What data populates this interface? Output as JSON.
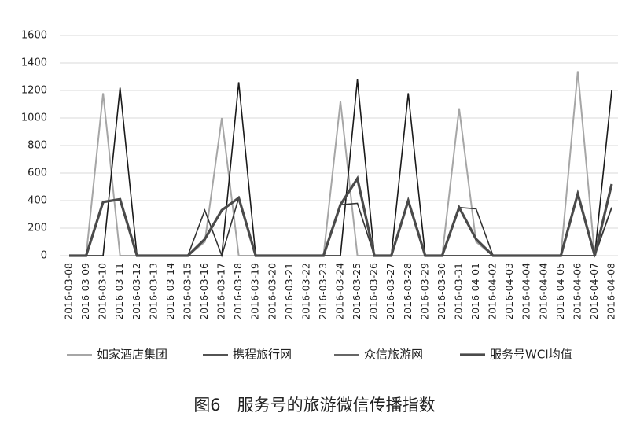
{
  "chart_data": {
    "type": "line",
    "title": "图6　服务号的旅游微信传播指数",
    "categories": [
      "2016-03-08",
      "2016-03-09",
      "2016-03-10",
      "2016-03-11",
      "2016-03-12",
      "2016-03-13",
      "2016-03-14",
      "2016-03-15",
      "2016-03-16",
      "2016-03-17",
      "2016-03-18",
      "2016-03-19",
      "2016-03-20",
      "2016-03-21",
      "2016-03-22",
      "2016-03-23",
      "2016-03-24",
      "2016-03-25",
      "2016-03-26",
      "2016-03-27",
      "2016-03-28",
      "2016-03-29",
      "2016-03-30",
      "2016-03-31",
      "2016-04-01",
      "2016-04-02",
      "2016-04-03",
      "2016-04-04",
      "2016-04-04",
      "2016-04-05",
      "2016-04-06",
      "2016-04-07",
      "2016-04-08"
    ],
    "series": [
      {
        "name": "如家酒店集团",
        "color": "#a6a6a6",
        "width": 2,
        "values": [
          0,
          0,
          1180,
          0,
          0,
          0,
          0,
          0,
          100,
          1000,
          0,
          0,
          0,
          0,
          0,
          0,
          1120,
          0,
          0,
          0,
          0,
          0,
          0,
          1070,
          100,
          0,
          0,
          0,
          0,
          0,
          1340,
          0,
          350
        ]
      },
      {
        "name": "携程旅行网",
        "color": "#1a1a1a",
        "width": 1.6,
        "values": [
          0,
          0,
          0,
          1220,
          0,
          0,
          0,
          0,
          0,
          0,
          1260,
          0,
          0,
          0,
          0,
          0,
          0,
          1280,
          0,
          0,
          1180,
          0,
          0,
          0,
          0,
          0,
          0,
          0,
          0,
          0,
          0,
          0,
          1200
        ]
      },
      {
        "name": "众信旅游网",
        "color": "#333333",
        "width": 1.6,
        "values": [
          0,
          0,
          390,
          410,
          0,
          0,
          0,
          0,
          330,
          0,
          420,
          0,
          0,
          0,
          0,
          0,
          370,
          380,
          0,
          0,
          400,
          0,
          0,
          350,
          340,
          0,
          0,
          0,
          0,
          0,
          450,
          0,
          350
        ]
      },
      {
        "name": "服务号WCI均值",
        "color": "#4a4a4a",
        "width": 3.2,
        "values": [
          0,
          0,
          390,
          410,
          0,
          0,
          0,
          0,
          120,
          330,
          420,
          0,
          0,
          0,
          0,
          0,
          370,
          560,
          0,
          0,
          400,
          0,
          0,
          350,
          120,
          0,
          0,
          0,
          0,
          0,
          450,
          0,
          520
        ]
      }
    ],
    "ylim": [
      0,
      1600
    ],
    "yticks": [
      0,
      200,
      400,
      600,
      800,
      1000,
      1200,
      1400,
      1600
    ],
    "grid": true
  }
}
